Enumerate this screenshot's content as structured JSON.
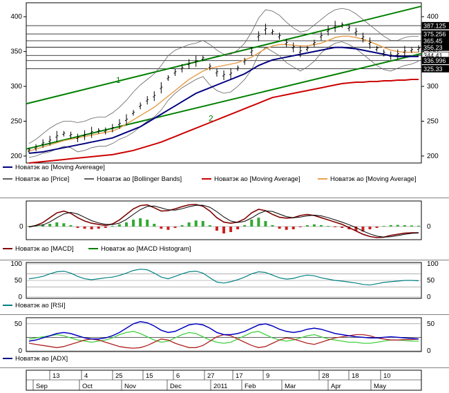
{
  "price_panel": {
    "y_ticks": [
      200,
      250,
      300,
      350,
      400
    ],
    "ylim": [
      190,
      420
    ],
    "price_labels": [
      "387.125",
      "375.256",
      "365.45",
      "356.23",
      "344.41",
      "336.996",
      "325.33"
    ],
    "price_levels": [
      387.125,
      375.256,
      365.45,
      356.23,
      344.41,
      336.996,
      325.33
    ],
    "price_label_colors": [
      "#ffffff",
      "#ffffff",
      "#ffffff",
      "#ffffff",
      "#000000",
      "#ffffff",
      "#ffffff"
    ],
    "channel_labels": [
      "1",
      "2"
    ],
    "channel_1": {
      "start": 275,
      "end": 415
    },
    "channel_2": {
      "start": 210,
      "end": 347
    },
    "colors": {
      "price": "#000000",
      "bollinger": "#606060",
      "ma_blue": "#000080",
      "ma_red": "#cc0000",
      "ma_orange": "#e8a050",
      "channel": "#008000"
    }
  },
  "legend_price": [
    {
      "label": "Новатэк ао [Moving Avereage]",
      "color": "#000080"
    },
    {
      "label": "Новатэк ао [Price]",
      "color": "#606060"
    },
    {
      "label": "Новатэк ао [Bollinger Bands]",
      "color": "#606060"
    },
    {
      "label": "Новатэк ао [Moving Average]",
      "color": "#cc0000"
    },
    {
      "label": "Новатэк ао [Moving Average]",
      "color": "#e8a050"
    }
  ],
  "macd_panel": {
    "y_ticks": [
      0
    ],
    "legend": [
      {
        "label": "Новатэк ао [MACD]",
        "color": "#800000"
      },
      {
        "label": "Новатэк ао [MACD Histogram]",
        "color": "#008000"
      }
    ]
  },
  "rsi_panel": {
    "y_ticks": [
      0,
      50,
      100
    ],
    "ylim": [
      0,
      100
    ],
    "legend": [
      {
        "label": "Новатэк ао [RSI]",
        "color": "#008080"
      }
    ]
  },
  "adx_panel": {
    "y_ticks": [
      0,
      50
    ],
    "ylim": [
      0,
      60
    ],
    "legend": [
      {
        "label": "Новатэк ао [ADX]",
        "color": "#000080"
      }
    ]
  },
  "time_axis": {
    "day_labels": [
      "13",
      "4",
      "25",
      "15",
      "6",
      "27",
      "17",
      "9",
      "28",
      "18",
      "10"
    ],
    "month_labels": [
      "Sep",
      "Oct",
      "Nov",
      "Dec",
      "2011",
      "Feb",
      "Mar",
      "Apr",
      "May"
    ]
  },
  "chart_data": [
    {
      "type": "line",
      "title": "",
      "y_ticks": [
        200,
        250,
        300,
        350,
        400
      ],
      "ylim": [
        190,
        420
      ],
      "series": [
        {
          "name": "Новатэк ао [Price]",
          "values": [
            208,
            212,
            218,
            222,
            228,
            232,
            230,
            226,
            230,
            234,
            236,
            236,
            240,
            246,
            252,
            262,
            272,
            280,
            286,
            298,
            312,
            320,
            326,
            332,
            336,
            340,
            328,
            320,
            316,
            318,
            326,
            336,
            350,
            372,
            382,
            378,
            372,
            362,
            356,
            350,
            354,
            362,
            372,
            380,
            386,
            388,
            384,
            378,
            370,
            362,
            354,
            348,
            344,
            346,
            350,
            352,
            354
          ]
        },
        {
          "name": "Новатэк ао [Moving Avereage]",
          "values": [
            204,
            205,
            206,
            208,
            210,
            212,
            214,
            216,
            218,
            220,
            222,
            224,
            226,
            230,
            234,
            238,
            242,
            248,
            254,
            260,
            266,
            272,
            278,
            284,
            290,
            294,
            298,
            302,
            306,
            310,
            314,
            318,
            324,
            330,
            334,
            338,
            340,
            342,
            344,
            346,
            348,
            350,
            352,
            354,
            356,
            356,
            355,
            354,
            352,
            350,
            348,
            346,
            344,
            343,
            343,
            343,
            343
          ]
        },
        {
          "name": "Новатэк ао [Moving Average]",
          "values": [
            190,
            191,
            192,
            193,
            194,
            195,
            196,
            197,
            198,
            199,
            200,
            201,
            202,
            204,
            206,
            208,
            211,
            214,
            217,
            220,
            224,
            228,
            232,
            236,
            240,
            244,
            248,
            252,
            256,
            260,
            264,
            268,
            272,
            276,
            280,
            284,
            286,
            288,
            290,
            292,
            294,
            296,
            298,
            300,
            302,
            304,
            305,
            306,
            306,
            307,
            307,
            308,
            308,
            309,
            309,
            310,
            310
          ]
        },
        {
          "name": "Новатэк ао [Moving Average]",
          "values": [
            207,
            210,
            213,
            216,
            219,
            222,
            224,
            226,
            228,
            230,
            232,
            234,
            236,
            240,
            246,
            252,
            258,
            264,
            270,
            278,
            286,
            294,
            302,
            310,
            316,
            322,
            326,
            328,
            330,
            332,
            334,
            338,
            342,
            348,
            354,
            358,
            360,
            360,
            359,
            358,
            358,
            360,
            362,
            366,
            370,
            372,
            372,
            370,
            368,
            364,
            360,
            356,
            352,
            350,
            349,
            349,
            349
          ]
        },
        {
          "name": "Новатэк ао [Bollinger Bands]",
          "values": [
            218,
            224,
            232,
            240,
            246,
            250,
            250,
            248,
            250,
            254,
            256,
            256,
            262,
            270,
            280,
            292,
            302,
            310,
            318,
            330,
            344,
            352,
            356,
            360,
            362,
            366,
            360,
            352,
            346,
            346,
            352,
            362,
            378,
            398,
            410,
            408,
            402,
            392,
            384,
            378,
            380,
            388,
            396,
            404,
            410,
            412,
            410,
            404,
            396,
            388,
            380,
            372,
            366,
            366,
            370,
            372,
            372
          ]
        },
        {
          "name": "Новатэк ао [Bollinger Bands]",
          "values": [
            198,
            200,
            204,
            206,
            210,
            214,
            212,
            206,
            208,
            212,
            214,
            214,
            218,
            224,
            228,
            234,
            242,
            250,
            256,
            266,
            280,
            290,
            298,
            304,
            310,
            314,
            302,
            294,
            290,
            292,
            300,
            310,
            324,
            346,
            356,
            350,
            344,
            334,
            328,
            322,
            328,
            336,
            348,
            356,
            362,
            364,
            360,
            354,
            346,
            338,
            330,
            324,
            322,
            326,
            330,
            332,
            336
          ]
        }
      ]
    },
    {
      "type": "line",
      "title": "MACD",
      "series": [
        {
          "name": "Новатэк ао [MACD]",
          "values": [
            -0.02,
            0.05,
            0.18,
            0.4,
            0.62,
            0.7,
            0.6,
            0.4,
            0.25,
            0.15,
            0.1,
            0.05,
            0.12,
            0.3,
            0.55,
            0.8,
            0.95,
            0.98,
            0.85,
            0.7,
            0.72,
            0.8,
            0.9,
            0.98,
            1.0,
            0.92,
            0.7,
            0.4,
            0.2,
            0.15,
            0.2,
            0.35,
            0.62,
            0.78,
            0.72,
            0.55,
            0.42,
            0.38,
            0.4,
            0.5,
            0.55,
            0.5,
            0.4,
            0.3,
            0.2,
            0.1,
            -0.05,
            -0.2,
            -0.35,
            -0.45,
            -0.5,
            -0.48,
            -0.4,
            -0.35,
            -0.3,
            -0.28,
            -0.28
          ]
        },
        {
          "name": "Новатэк ао [MACD Histogram]",
          "values": [
            0.02,
            0.05,
            0.08,
            0.1,
            0.15,
            0.12,
            0.05,
            -0.05,
            -0.08,
            -0.1,
            -0.08,
            -0.05,
            0.02,
            0.08,
            0.15,
            0.25,
            0.3,
            0.25,
            0.1,
            -0.08,
            -0.12,
            -0.05,
            0.05,
            0.15,
            0.22,
            0.2,
            0.05,
            -0.15,
            -0.25,
            -0.2,
            -0.1,
            0.05,
            0.25,
            0.32,
            0.2,
            0.05,
            -0.08,
            -0.12,
            -0.1,
            -0.02,
            0.05,
            0.08,
            0.05,
            0.02,
            -0.02,
            -0.05,
            -0.1,
            -0.15,
            -0.18,
            -0.1,
            -0.05,
            0.02,
            0.05,
            0.06,
            0.05,
            0.04,
            0.03
          ]
        }
      ]
    },
    {
      "type": "line",
      "title": "RSI",
      "ylim": [
        0,
        100
      ],
      "y_ticks": [
        0,
        50,
        100
      ],
      "series": [
        {
          "name": "Новатэк ао [RSI]",
          "values": [
            55,
            58,
            62,
            70,
            76,
            78,
            72,
            62,
            55,
            52,
            55,
            58,
            60,
            65,
            72,
            80,
            84,
            82,
            72,
            60,
            55,
            62,
            70,
            76,
            78,
            72,
            58,
            45,
            42,
            46,
            52,
            60,
            70,
            76,
            74,
            66,
            58,
            54,
            56,
            62,
            66,
            64,
            58,
            54,
            50,
            48,
            45,
            42,
            38,
            36,
            40,
            44,
            46,
            48,
            50,
            50,
            49
          ]
        }
      ]
    },
    {
      "type": "line",
      "title": "ADX",
      "ylim": [
        0,
        60
      ],
      "y_ticks": [
        0,
        50
      ],
      "series": [
        {
          "name": "Новатэк ао [ADX]",
          "values": [
            18,
            20,
            24,
            28,
            32,
            34,
            32,
            28,
            24,
            22,
            22,
            24,
            28,
            34,
            42,
            50,
            54,
            52,
            46,
            38,
            34,
            36,
            42,
            48,
            50,
            48,
            42,
            34,
            30,
            30,
            32,
            36,
            42,
            48,
            50,
            46,
            40,
            36,
            34,
            36,
            40,
            42,
            40,
            36,
            32,
            30,
            28,
            26,
            25,
            24,
            24,
            25,
            26,
            25,
            24,
            23,
            22
          ]
        },
        {
          "name": "",
          "values": [
            22,
            24,
            26,
            28,
            30,
            28,
            24,
            20,
            18,
            16,
            18,
            20,
            24,
            30,
            34,
            36,
            32,
            26,
            20,
            16,
            18,
            24,
            30,
            34,
            32,
            26,
            20,
            16,
            14,
            16,
            22,
            28,
            34,
            36,
            30,
            24,
            20,
            18,
            20,
            24,
            28,
            30,
            26,
            22,
            20,
            18,
            16,
            16,
            14,
            14,
            16,
            18,
            20,
            20,
            19,
            18,
            18
          ]
        },
        {
          "name": "",
          "values": [
            14,
            12,
            10,
            8,
            6,
            8,
            12,
            16,
            20,
            22,
            20,
            16,
            12,
            8,
            6,
            5,
            6,
            10,
            16,
            22,
            20,
            14,
            10,
            6,
            6,
            10,
            18,
            26,
            30,
            28,
            22,
            16,
            10,
            6,
            8,
            14,
            20,
            24,
            22,
            18,
            14,
            12,
            16,
            20,
            24,
            26,
            28,
            30,
            30,
            28,
            24,
            22,
            20,
            20,
            21,
            21,
            22
          ]
        }
      ]
    }
  ]
}
